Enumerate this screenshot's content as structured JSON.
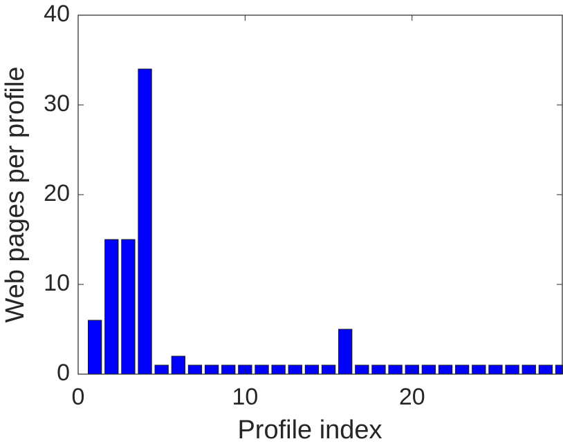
{
  "chart_data": {
    "type": "bar",
    "xlabel": "Profile index",
    "ylabel": "Web pages per profile",
    "x": [
      1,
      2,
      3,
      4,
      5,
      6,
      7,
      8,
      9,
      10,
      11,
      12,
      13,
      14,
      15,
      16,
      17,
      18,
      19,
      20,
      21,
      22,
      23,
      24,
      25,
      26,
      27,
      28,
      29
    ],
    "values": [
      6,
      15,
      15,
      34,
      1,
      2,
      1,
      1,
      1,
      1,
      1,
      1,
      1,
      1,
      1,
      5,
      1,
      1,
      1,
      1,
      1,
      1,
      1,
      1,
      1,
      1,
      1,
      1,
      1
    ],
    "color": "#0000ff",
    "xlim": [
      0,
      29
    ],
    "xticks": [
      0,
      10,
      20
    ],
    "ylim": [
      0,
      40
    ],
    "yticks": [
      0,
      10,
      20,
      30,
      40
    ],
    "grid": false
  }
}
